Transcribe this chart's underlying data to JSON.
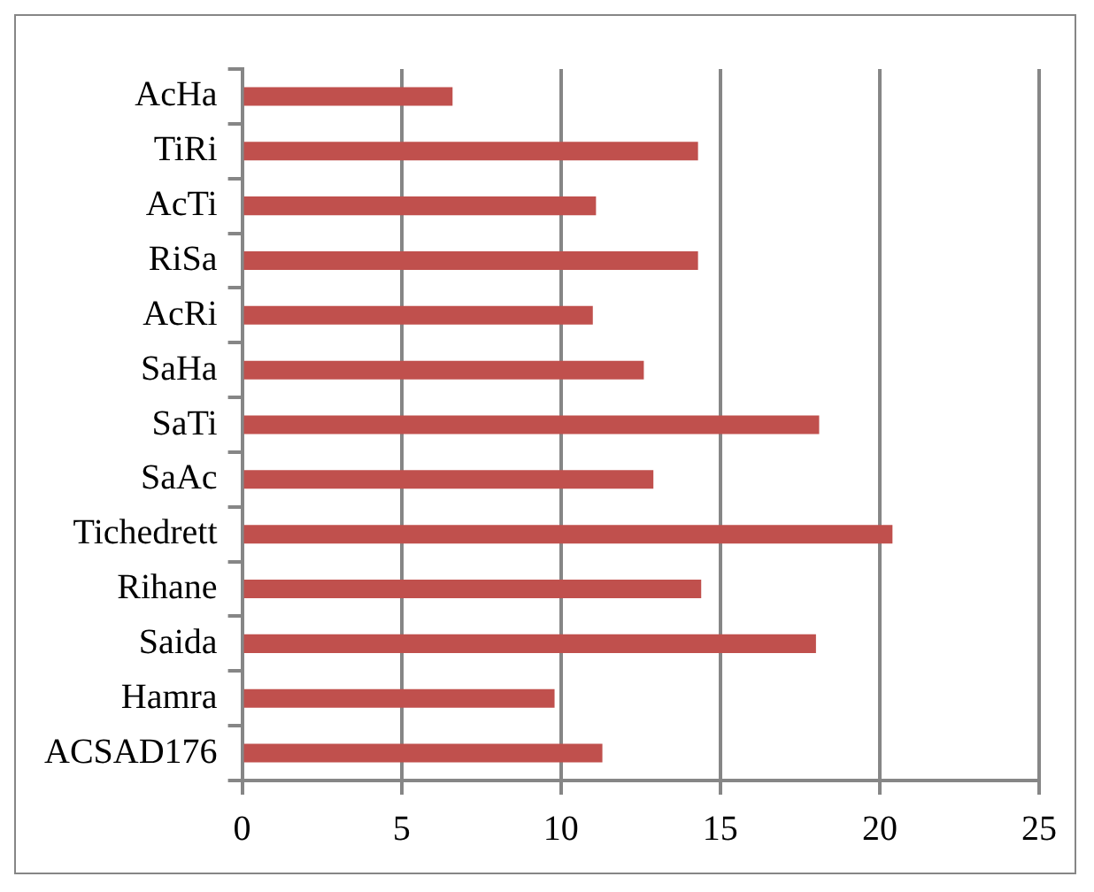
{
  "chart_data": {
    "type": "bar",
    "orientation": "horizontal",
    "categories": [
      "AcHa",
      "TiRi",
      "AcTi",
      "RiSa",
      "AcRi",
      "SaHa",
      "SaTi",
      "SaAc",
      "Tichedrett",
      "Rihane",
      "Saida",
      "Hamra",
      "ACSAD176"
    ],
    "values": [
      6.6,
      14.3,
      11.1,
      14.3,
      11.0,
      12.6,
      18.1,
      12.9,
      20.4,
      14.4,
      18.0,
      9.8,
      11.3
    ],
    "color": "#c0504d",
    "xlim": [
      0,
      25
    ],
    "xticks": [
      0,
      5,
      10,
      15,
      20,
      25
    ],
    "grid": "x",
    "legend": false
  }
}
